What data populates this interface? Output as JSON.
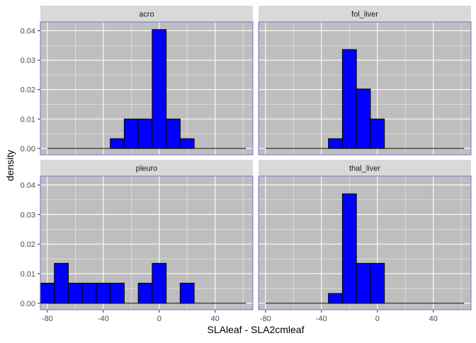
{
  "chart_data": {
    "type": "bar",
    "subtype": "faceted-histogram",
    "xlabel": "SLAleaf - SLA2cmleaf",
    "ylabel": "density",
    "xlim": [
      -85,
      67
    ],
    "ylim": [
      -0.0022,
      0.043
    ],
    "xticks": [
      -80,
      -40,
      0,
      40
    ],
    "yticks": [
      0.0,
      0.01,
      0.02,
      0.03,
      0.04
    ],
    "ytick_labels": [
      "0.00",
      "0.01",
      "0.02",
      "0.03",
      "0.04"
    ],
    "bin_width": 10,
    "grid": true,
    "colors": {
      "bar_fill": "#0000ff",
      "bar_stroke": "#000000",
      "panel_bg": "#bebebe",
      "panel_border": "#5a5ad2",
      "strip_bg": "#d9d9d9",
      "grid": "#ffffff"
    },
    "facets": [
      {
        "name": "acro",
        "bins": [
          {
            "x0": -35,
            "x1": -25,
            "density": 0.0033
          },
          {
            "x0": -25,
            "x1": -15,
            "density": 0.01
          },
          {
            "x0": -15,
            "x1": -5,
            "density": 0.01
          },
          {
            "x0": -5,
            "x1": 5,
            "density": 0.0404
          },
          {
            "x0": 5,
            "x1": 15,
            "density": 0.01
          },
          {
            "x0": 15,
            "x1": 25,
            "density": 0.0033
          }
        ]
      },
      {
        "name": "fol_liver",
        "bins": [
          {
            "x0": -35,
            "x1": -25,
            "density": 0.0033
          },
          {
            "x0": -25,
            "x1": -15,
            "density": 0.0336
          },
          {
            "x0": -15,
            "x1": -5,
            "density": 0.0202
          },
          {
            "x0": -5,
            "x1": 5,
            "density": 0.01
          }
        ]
      },
      {
        "name": "pleuro",
        "bins": [
          {
            "x0": -85,
            "x1": -75,
            "density": 0.0068
          },
          {
            "x0": -75,
            "x1": -65,
            "density": 0.0135
          },
          {
            "x0": -65,
            "x1": -55,
            "density": 0.0068
          },
          {
            "x0": -55,
            "x1": -45,
            "density": 0.0068
          },
          {
            "x0": -45,
            "x1": -35,
            "density": 0.0068
          },
          {
            "x0": -35,
            "x1": -25,
            "density": 0.0068
          },
          {
            "x0": -15,
            "x1": -5,
            "density": 0.0068
          },
          {
            "x0": -5,
            "x1": 5,
            "density": 0.0135
          },
          {
            "x0": 15,
            "x1": 25,
            "density": 0.0068
          }
        ]
      },
      {
        "name": "thal_liver",
        "bins": [
          {
            "x0": -35,
            "x1": -25,
            "density": 0.0033
          },
          {
            "x0": -25,
            "x1": -15,
            "density": 0.037
          },
          {
            "x0": -15,
            "x1": -5,
            "density": 0.0135
          },
          {
            "x0": -5,
            "x1": 5,
            "density": 0.0135
          }
        ]
      }
    ]
  }
}
